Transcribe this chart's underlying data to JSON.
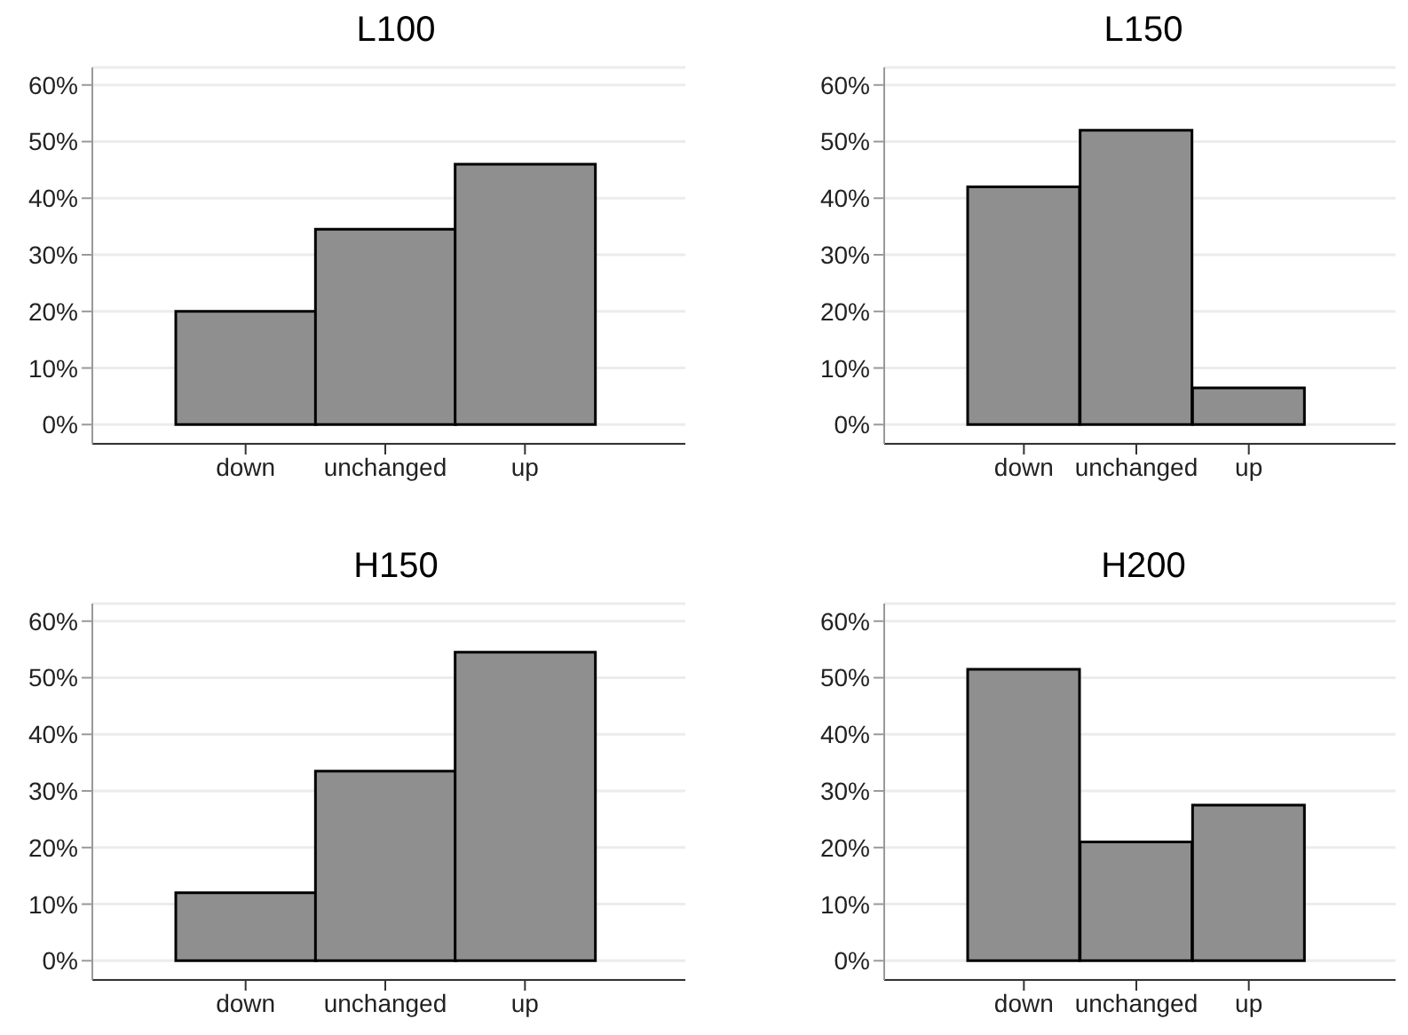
{
  "chart_data": [
    {
      "type": "bar",
      "title": "L100",
      "categories": [
        "down",
        "unchanged",
        "up"
      ],
      "values": [
        20,
        34.5,
        46
      ],
      "color": "#8f8f8f",
      "ylim": [
        -3.4,
        63.1
      ],
      "yticks": [
        {
          "value": 0,
          "label": "0%"
        },
        {
          "value": 10,
          "label": "10%"
        },
        {
          "value": 20,
          "label": "20%"
        },
        {
          "value": 30,
          "label": "30%"
        },
        {
          "value": 40,
          "label": "40%"
        },
        {
          "value": 50,
          "label": "50%"
        },
        {
          "value": 60,
          "label": "60%"
        }
      ],
      "grid": "y"
    },
    {
      "type": "bar",
      "title": "L150",
      "categories": [
        "down",
        "unchanged",
        "up"
      ],
      "values": [
        42,
        52,
        6.5
      ],
      "color": "#8f8f8f",
      "ylim": [
        -3.4,
        63.1
      ],
      "yticks": [
        {
          "value": 0,
          "label": "0%"
        },
        {
          "value": 10,
          "label": "10%"
        },
        {
          "value": 20,
          "label": "20%"
        },
        {
          "value": 30,
          "label": "30%"
        },
        {
          "value": 40,
          "label": "40%"
        },
        {
          "value": 50,
          "label": "50%"
        },
        {
          "value": 60,
          "label": "60%"
        }
      ],
      "grid": "y"
    },
    {
      "type": "bar",
      "title": "H150",
      "categories": [
        "down",
        "unchanged",
        "up"
      ],
      "values": [
        12,
        33.5,
        54.5
      ],
      "color": "#8f8f8f",
      "ylim": [
        -3.4,
        63.1
      ],
      "yticks": [
        {
          "value": 0,
          "label": "0%"
        },
        {
          "value": 10,
          "label": "10%"
        },
        {
          "value": 20,
          "label": "20%"
        },
        {
          "value": 30,
          "label": "30%"
        },
        {
          "value": 40,
          "label": "40%"
        },
        {
          "value": 50,
          "label": "50%"
        },
        {
          "value": 60,
          "label": "60%"
        }
      ],
      "grid": "y"
    },
    {
      "type": "bar",
      "title": "H200",
      "categories": [
        "down",
        "unchanged",
        "up"
      ],
      "values": [
        51.5,
        21,
        27.5
      ],
      "color": "#8f8f8f",
      "ylim": [
        -3.4,
        63.1
      ],
      "yticks": [
        {
          "value": 0,
          "label": "0%"
        },
        {
          "value": 10,
          "label": "10%"
        },
        {
          "value": 20,
          "label": "20%"
        },
        {
          "value": 30,
          "label": "30%"
        },
        {
          "value": 40,
          "label": "40%"
        },
        {
          "value": 50,
          "label": "50%"
        },
        {
          "value": 60,
          "label": "60%"
        }
      ],
      "grid": "y"
    }
  ]
}
